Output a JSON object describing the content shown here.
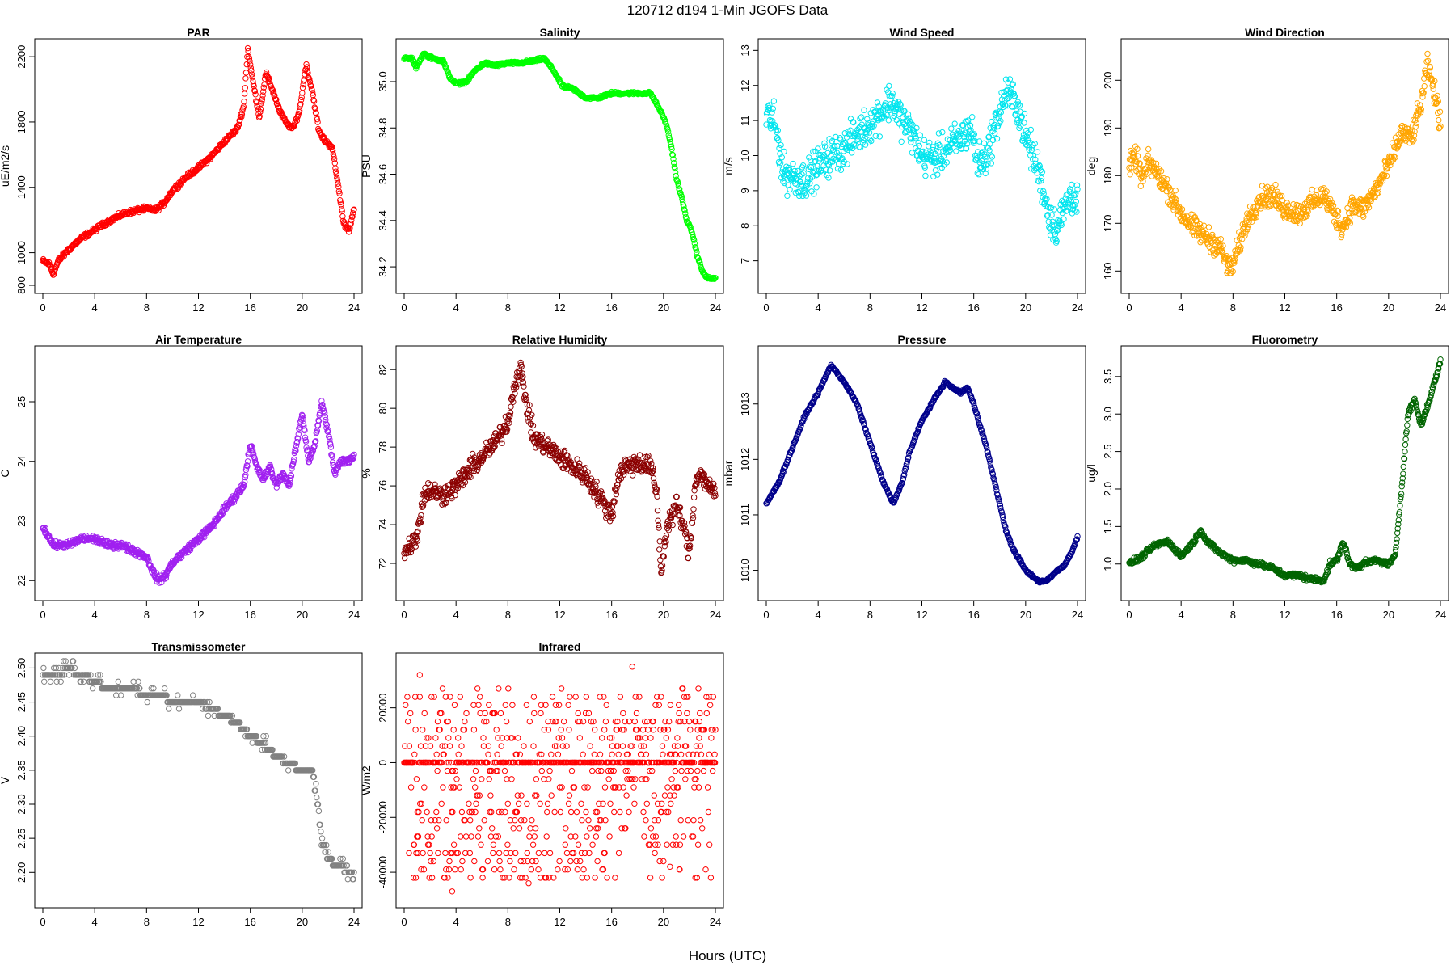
{
  "figure": {
    "title": "120712   d194   1-Min  JGOFS Data",
    "xlabel": "Hours (UTC)"
  },
  "chart_data": [
    {
      "type": "scatter",
      "title": "PAR",
      "ylabel": "uE/m2/s",
      "color": "#ff0000",
      "xlim": [
        0,
        24
      ],
      "xticks": [
        0,
        4,
        8,
        12,
        16,
        20,
        24
      ],
      "ylim": [
        800,
        2260
      ],
      "yticks": [
        800,
        1000,
        1400,
        1800,
        2200
      ],
      "ytick_labels": [
        "800",
        "1000",
        "1400",
        "1800",
        "2200"
      ],
      "kind": "dense",
      "noise": 12,
      "x": [
        0,
        0.5,
        0.8,
        1.2,
        2,
        3,
        4,
        5,
        6,
        7,
        8,
        8.7,
        9.3,
        10,
        11,
        12,
        13,
        14,
        15,
        15.5,
        15.8,
        16.2,
        16.7,
        17.2,
        17.7,
        18.3,
        18.8,
        19.3,
        19.8,
        20.3,
        20.8,
        21.3,
        21.8,
        22.3,
        22.8,
        23.2,
        23.6,
        24
      ],
      "y": [
        950,
        930,
        870,
        950,
        1020,
        1090,
        1140,
        1190,
        1230,
        1255,
        1270,
        1260,
        1300,
        1380,
        1460,
        1520,
        1590,
        1680,
        1760,
        1900,
        2250,
        2050,
        1830,
        2100,
        2000,
        1860,
        1790,
        1760,
        1870,
        2150,
        1980,
        1740,
        1680,
        1650,
        1400,
        1180,
        1140,
        1260
      ]
    },
    {
      "type": "scatter",
      "title": "Salinity",
      "ylabel": "PSU",
      "color": "#00ff00",
      "xlim": [
        0,
        24
      ],
      "xticks": [
        0,
        4,
        8,
        12,
        16,
        20,
        24
      ],
      "ylim": [
        34.12,
        35.15
      ],
      "yticks": [
        34.2,
        34.4,
        34.6,
        34.8,
        35.0
      ],
      "ytick_labels": [
        "34.2",
        "34.4",
        "34.6",
        "34.8",
        "35.0"
      ],
      "kind": "dense",
      "noise": 0.005,
      "x": [
        0,
        0.6,
        0.9,
        1.5,
        2.2,
        3,
        3.5,
        4,
        4.8,
        5.5,
        6.2,
        7,
        8,
        9,
        10,
        10.8,
        11.5,
        12.2,
        13,
        14,
        15,
        16,
        17,
        18,
        19,
        19.8,
        20.2,
        20.6,
        21,
        21.4,
        21.8,
        22.2,
        22.6,
        23,
        23.4,
        24
      ],
      "y": [
        35.1,
        35.1,
        35.06,
        35.12,
        35.1,
        35.09,
        35.02,
        34.99,
        35.0,
        35.05,
        35.08,
        35.07,
        35.08,
        35.08,
        35.09,
        35.1,
        35.05,
        34.98,
        34.97,
        34.93,
        34.93,
        34.95,
        34.95,
        34.95,
        34.95,
        34.87,
        34.82,
        34.72,
        34.58,
        34.5,
        34.4,
        34.35,
        34.25,
        34.18,
        34.15,
        34.15
      ]
    },
    {
      "type": "scatter",
      "title": "Wind Speed",
      "ylabel": "m/s",
      "color": "#00e5ee",
      "xlim": [
        0,
        24
      ],
      "xticks": [
        0,
        4,
        8,
        12,
        16,
        20,
        24
      ],
      "ylim": [
        6.3,
        13.1
      ],
      "yticks": [
        7,
        8,
        9,
        10,
        11,
        12,
        13
      ],
      "ytick_labels": [
        "7",
        "8",
        "9",
        "10",
        "11",
        "12",
        "13"
      ],
      "kind": "noisy",
      "noise": 0.45,
      "x": [
        0,
        0.5,
        0.9,
        1.3,
        2,
        3,
        4,
        5,
        6,
        7,
        8,
        9,
        9.6,
        10.5,
        11.3,
        12,
        13,
        14,
        15,
        15.8,
        16.3,
        17,
        17.8,
        18.5,
        19.3,
        20,
        20.6,
        21.2,
        21.8,
        22.4,
        23,
        23.5,
        24
      ],
      "y": [
        11.2,
        11.0,
        10.5,
        9.5,
        9.4,
        9.3,
        9.7,
        10.0,
        10.2,
        10.6,
        10.9,
        11.3,
        11.6,
        11.0,
        10.6,
        10.0,
        9.9,
        10.2,
        10.5,
        10.8,
        9.8,
        10.0,
        11.0,
        11.8,
        11.5,
        10.5,
        10.0,
        9.3,
        8.3,
        7.9,
        8.5,
        8.9,
        8.7
      ]
    },
    {
      "type": "scatter",
      "title": "Wind Direction",
      "ylabel": "deg",
      "color": "#ffa500",
      "xlim": [
        0,
        24
      ],
      "xticks": [
        0,
        4,
        8,
        12,
        16,
        20,
        24
      ],
      "ylim": [
        157,
        207
      ],
      "yticks": [
        160,
        170,
        180,
        190,
        200
      ],
      "ytick_labels": [
        "160",
        "170",
        "180",
        "190",
        "200"
      ],
      "kind": "noisy",
      "noise": 2.0,
      "x": [
        0,
        0.5,
        1,
        1.5,
        2,
        3,
        4,
        5,
        6,
        7,
        7.8,
        8.3,
        9,
        10,
        11,
        12,
        13,
        14,
        15,
        15.8,
        16.5,
        17.2,
        18,
        19,
        20,
        21,
        21.7,
        22,
        22.5,
        23,
        23.5,
        24
      ],
      "y": [
        182,
        184,
        179,
        183,
        181,
        177,
        172,
        169,
        167,
        165,
        160,
        164,
        170,
        175,
        176,
        173,
        172,
        174,
        176,
        172,
        169,
        174,
        173,
        177,
        182,
        189,
        188,
        190,
        195,
        203,
        198,
        191
      ]
    },
    {
      "type": "scatter",
      "title": "Air Temperature",
      "ylabel": "C",
      "color": "#a020f0",
      "xlim": [
        0,
        24
      ],
      "xticks": [
        0,
        4,
        8,
        12,
        16,
        20,
        24
      ],
      "ylim": [
        21.8,
        25.8
      ],
      "yticks": [
        22,
        23,
        24,
        25
      ],
      "ytick_labels": [
        "22",
        "23",
        "24",
        "25"
      ],
      "kind": "noisy",
      "noise": 0.05,
      "x": [
        0,
        0.3,
        0.8,
        1.5,
        2,
        3,
        4,
        5,
        6,
        7,
        8,
        8.6,
        9,
        9.5,
        10,
        11,
        12,
        13,
        14,
        14.8,
        15.5,
        16,
        16.5,
        17,
        17.5,
        18,
        18.5,
        19,
        19.5,
        20,
        20.5,
        21,
        21.5,
        22,
        22.5,
        23,
        23.5,
        24
      ],
      "y": [
        22.9,
        22.8,
        22.6,
        22.6,
        22.6,
        22.7,
        22.7,
        22.6,
        22.6,
        22.5,
        22.4,
        22.1,
        22.0,
        22.1,
        22.3,
        22.5,
        22.7,
        22.9,
        23.2,
        23.4,
        23.6,
        24.3,
        23.9,
        23.7,
        23.9,
        23.6,
        23.8,
        23.6,
        24.2,
        24.8,
        24.0,
        24.3,
        25.0,
        24.5,
        23.8,
        24.0,
        24.0,
        24.1
      ]
    },
    {
      "type": "scatter",
      "title": "Relative Humidity",
      "ylabel": "%",
      "color": "#8b0000",
      "xlim": [
        0,
        24
      ],
      "xticks": [
        0,
        4,
        8,
        12,
        16,
        20,
        24
      ],
      "ylim": [
        70.5,
        82.8
      ],
      "yticks": [
        72,
        74,
        76,
        78,
        80,
        82
      ],
      "ytick_labels": [
        "72",
        "74",
        "76",
        "78",
        "80",
        "82"
      ],
      "kind": "noisy",
      "noise": 0.45,
      "x": [
        0,
        0.5,
        1,
        1.5,
        2,
        3,
        4,
        5,
        6,
        7,
        8,
        8.6,
        9,
        9.5,
        10,
        11,
        12,
        13,
        14,
        15,
        15.5,
        16,
        16.5,
        17,
        18,
        19,
        19.5,
        19.8,
        20.3,
        21,
        21.5,
        22,
        22.5,
        23,
        23.5,
        24
      ],
      "y": [
        72.5,
        73.0,
        73.5,
        75.5,
        75.8,
        75.5,
        76.0,
        76.8,
        77.5,
        78.2,
        79.3,
        81.5,
        82.0,
        80.0,
        78.5,
        78.0,
        77.5,
        77.0,
        76.5,
        75.5,
        75.0,
        74.5,
        76.5,
        77.0,
        77.2,
        77.0,
        75.5,
        71.5,
        74.0,
        75.0,
        74.0,
        72.5,
        76.5,
        76.5,
        76.0,
        75.5
      ]
    },
    {
      "type": "scatter",
      "title": "Pressure",
      "ylabel": "mbar",
      "color": "#00008b",
      "xlim": [
        0,
        24
      ],
      "xticks": [
        0,
        4,
        8,
        12,
        16,
        20,
        24
      ],
      "ylim": [
        1009.6,
        1013.9
      ],
      "yticks": [
        1010,
        1011,
        1012,
        1013
      ],
      "ytick_labels": [
        "1010",
        "1011",
        "1012",
        "1013"
      ],
      "kind": "dense",
      "noise": 0.02,
      "x": [
        0,
        1,
        2,
        3,
        4,
        5,
        6,
        7,
        8,
        9,
        9.8,
        10.5,
        11,
        12,
        13,
        13.8,
        14.3,
        15,
        15.5,
        16,
        17,
        18,
        18.5,
        19,
        19.5,
        20,
        20.5,
        21,
        21.5,
        22,
        22.5,
        23,
        23.5,
        24
      ],
      "y": [
        1011.2,
        1011.6,
        1012.2,
        1012.8,
        1013.2,
        1013.7,
        1013.4,
        1013.0,
        1012.3,
        1011.6,
        1011.2,
        1011.6,
        1012.1,
        1012.7,
        1013.1,
        1013.4,
        1013.3,
        1013.2,
        1013.3,
        1013.0,
        1012.2,
        1011.2,
        1010.7,
        1010.4,
        1010.2,
        1010.0,
        1009.9,
        1009.8,
        1009.8,
        1009.9,
        1010.0,
        1010.1,
        1010.3,
        1010.6
      ]
    },
    {
      "type": "scatter",
      "title": "Fluorometry",
      "ylabel": "ug/l",
      "color": "#006400",
      "xlim": [
        0,
        24
      ],
      "xticks": [
        0,
        4,
        8,
        12,
        16,
        20,
        24
      ],
      "ylim": [
        0.62,
        3.8
      ],
      "yticks": [
        1.0,
        1.5,
        2.0,
        2.5,
        3.0,
        3.5
      ],
      "ytick_labels": [
        "1.0",
        "1.5",
        "2.0",
        "2.5",
        "3.0",
        "3.5"
      ],
      "kind": "noisy",
      "noise": 0.03,
      "x": [
        0,
        1,
        2,
        3,
        4,
        5,
        5.5,
        6,
        7,
        8,
        9,
        10,
        11,
        12,
        13,
        14,
        15,
        15.5,
        16,
        16.5,
        17,
        17.5,
        18,
        19,
        20,
        20.5,
        21,
        21.5,
        22,
        22.5,
        23,
        23.5,
        24
      ],
      "y": [
        1.0,
        1.1,
        1.25,
        1.3,
        1.1,
        1.3,
        1.45,
        1.3,
        1.15,
        1.05,
        1.05,
        1.0,
        0.95,
        0.85,
        0.85,
        0.8,
        0.78,
        1.0,
        1.05,
        1.3,
        1.0,
        0.95,
        1.0,
        1.05,
        1.0,
        1.1,
        2.0,
        3.0,
        3.2,
        2.85,
        3.1,
        3.4,
        3.7
      ]
    },
    {
      "type": "scatter",
      "title": "Transmissometer",
      "ylabel": "V",
      "color": "#808080",
      "xlim": [
        0,
        24
      ],
      "xticks": [
        0,
        4,
        8,
        12,
        16,
        20,
        24
      ],
      "ylim": [
        2.16,
        2.51
      ],
      "yticks": [
        2.2,
        2.25,
        2.3,
        2.35,
        2.4,
        2.45,
        2.5
      ],
      "ytick_labels": [
        "2.20",
        "2.25",
        "2.30",
        "2.35",
        "2.40",
        "2.45",
        "2.50"
      ],
      "kind": "steps",
      "noise": 0,
      "x": [
        0,
        1,
        2,
        3,
        4,
        5,
        6,
        7,
        8,
        9,
        10,
        11,
        12,
        13,
        14,
        15,
        16,
        17,
        18,
        19,
        20,
        20.8,
        21.2,
        21.5,
        22,
        22.5,
        23,
        23.5,
        24
      ],
      "y": [
        2.49,
        2.49,
        2.5,
        2.49,
        2.48,
        2.47,
        2.47,
        2.47,
        2.46,
        2.46,
        2.45,
        2.45,
        2.45,
        2.44,
        2.43,
        2.42,
        2.4,
        2.39,
        2.37,
        2.36,
        2.35,
        2.35,
        2.3,
        2.25,
        2.22,
        2.21,
        2.21,
        2.2,
        2.2
      ]
    },
    {
      "type": "scatter",
      "title": "Infrared",
      "ylabel": "W/m2",
      "color": "#ff0000",
      "xlim": [
        0,
        24
      ],
      "xticks": [
        0,
        4,
        8,
        12,
        16,
        20,
        24
      ],
      "ylim": [
        -50000,
        37000
      ],
      "yticks": [
        -40000,
        -20000,
        0,
        20000
      ],
      "ytick_labels": [
        "-40000",
        "-20000",
        "0",
        "20000"
      ],
      "kind": "quantized",
      "noise": 0,
      "x": [
        0,
        4,
        8,
        12,
        15,
        16,
        19,
        20,
        24
      ],
      "y": [
        0,
        0,
        0,
        0,
        0,
        0,
        0,
        0,
        0
      ]
    }
  ]
}
